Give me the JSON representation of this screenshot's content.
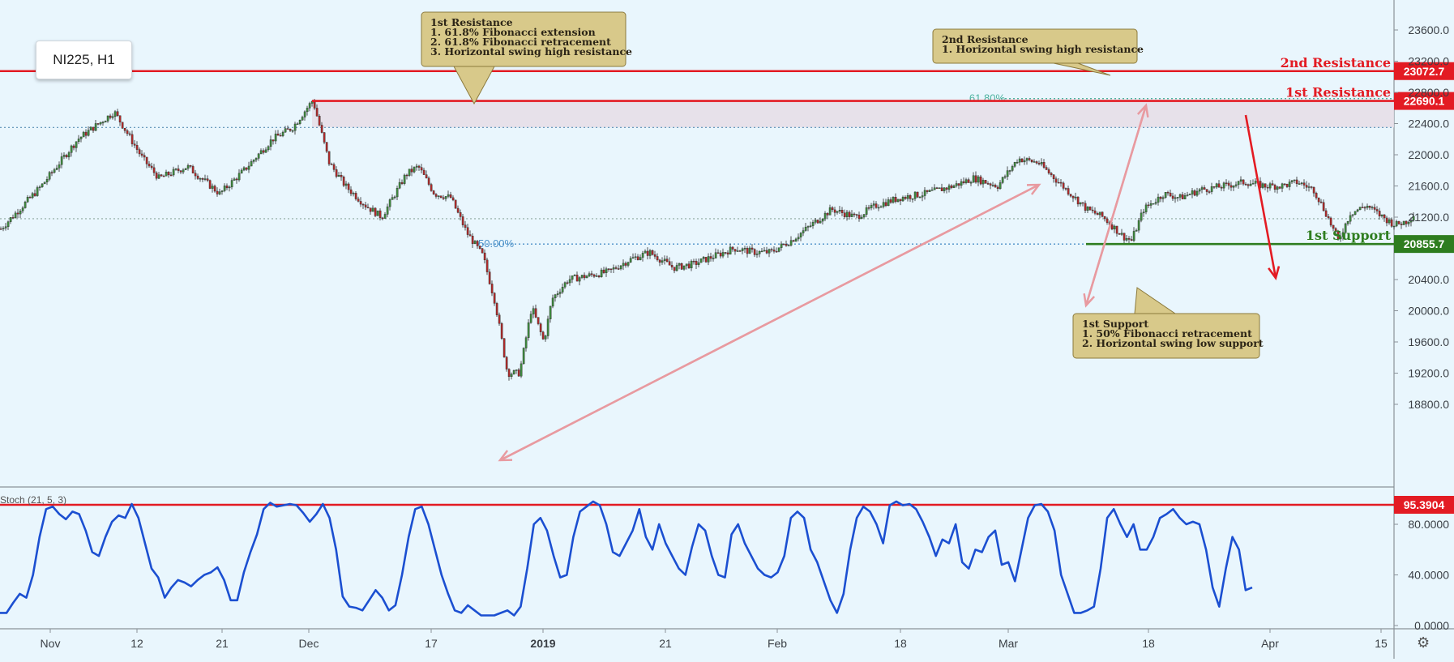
{
  "legend": {
    "symbol_label": "NI225, H1"
  },
  "indicator_label": "Stoch (21, 5, 3)",
  "colors": {
    "background": "#e9f6fd",
    "resistance": "#e31b23",
    "support": "#2e7d1f",
    "up_candle": "#3e8a3e",
    "down_candle": "#b02a2a",
    "stoch_line": "#1b4fd1",
    "arrow_light": "#e89aa0",
    "callout_fill": "#d8c98a",
    "fib_line": "#4a90c8"
  },
  "chart_data": [
    {
      "type": "candlestick",
      "title": "NI225, H1",
      "x_ticks": [
        "Nov",
        "12",
        "21",
        "Dec",
        "17",
        "2019",
        "21",
        "Feb",
        "18",
        "Mar",
        "18",
        "Apr",
        "15"
      ],
      "y_ticks": [
        "23600.0",
        "23200.0",
        "22800.0",
        "22400.0",
        "22000.0",
        "21600.0",
        "21200.0",
        "20400.0",
        "20000.0",
        "19600.0",
        "19200.0",
        "18800.0"
      ],
      "ylim": [
        18550,
        24050
      ],
      "path": [
        [
          0,
          21050
        ],
        [
          50,
          21600
        ],
        [
          95,
          22200
        ],
        [
          140,
          22550
        ],
        [
          175,
          21950
        ],
        [
          195,
          21700
        ],
        [
          230,
          21850
        ],
        [
          270,
          21500
        ],
        [
          300,
          21800
        ],
        [
          335,
          22200
        ],
        [
          360,
          22350
        ],
        [
          385,
          22700
        ],
        [
          405,
          21900
        ],
        [
          425,
          21600
        ],
        [
          450,
          21350
        ],
        [
          470,
          21200
        ],
        [
          500,
          21750
        ],
        [
          515,
          21850
        ],
        [
          535,
          21500
        ],
        [
          555,
          21450
        ],
        [
          575,
          21000
        ],
        [
          595,
          20700
        ],
        [
          610,
          20100
        ],
        [
          625,
          19200
        ],
        [
          640,
          19200
        ],
        [
          655,
          20050
        ],
        [
          670,
          19600
        ],
        [
          680,
          20150
        ],
        [
          700,
          20400
        ],
        [
          725,
          20450
        ],
        [
          750,
          20500
        ],
        [
          775,
          20650
        ],
        [
          800,
          20750
        ],
        [
          830,
          20550
        ],
        [
          855,
          20600
        ],
        [
          880,
          20700
        ],
        [
          905,
          20800
        ],
        [
          930,
          20750
        ],
        [
          950,
          20750
        ],
        [
          975,
          20900
        ],
        [
          1000,
          21100
        ],
        [
          1025,
          21300
        ],
        [
          1055,
          21200
        ],
        [
          1080,
          21350
        ],
        [
          1110,
          21450
        ],
        [
          1140,
          21500
        ],
        [
          1175,
          21600
        ],
        [
          1200,
          21700
        ],
        [
          1230,
          21600
        ],
        [
          1255,
          21950
        ],
        [
          1280,
          21900
        ],
        [
          1300,
          21700
        ],
        [
          1320,
          21500
        ],
        [
          1340,
          21300
        ],
        [
          1360,
          21200
        ],
        [
          1385,
          20950
        ],
        [
          1395,
          20900
        ],
        [
          1410,
          21300
        ],
        [
          1435,
          21500
        ],
        [
          1455,
          21450
        ],
        [
          1480,
          21550
        ],
        [
          1510,
          21600
        ],
        [
          1535,
          21650
        ],
        [
          1560,
          21600
        ],
        [
          1580,
          21600
        ],
        [
          1600,
          21650
        ],
        [
          1620,
          21550
        ],
        [
          1635,
          21250
        ],
        [
          1650,
          20900
        ],
        [
          1665,
          21250
        ],
        [
          1685,
          21350
        ],
        [
          1705,
          21200
        ],
        [
          1720,
          21100
        ],
        [
          1735,
          21150
        ],
        [
          1745,
          21250
        ]
      ],
      "levels": [
        {
          "name": "2nd Resistance",
          "value": 23072.7,
          "label": "23072.7"
        },
        {
          "name": "1st Resistance",
          "value": 22690.1,
          "label": "22690.1"
        },
        {
          "name": "1st Support",
          "value": 20855.7,
          "label": "20855.7"
        }
      ],
      "fibonacci": [
        {
          "label": "61.80%",
          "value": 22720
        },
        {
          "label": "50.00%",
          "value": 20855
        }
      ],
      "dotted_levels": [
        22350,
        21180
      ],
      "resistance_zone": [
        22350,
        22690.1
      ],
      "annotations": [
        {
          "id": "first_resistance_callout",
          "lines": [
            "1st Resistance",
            "1. 61.8% Fibonacci extension",
            "2. 61.8% Fibonacci retracement",
            "3. Horizontal swing high resistance"
          ]
        },
        {
          "id": "second_resistance_callout",
          "lines": [
            "2nd Resistance",
            "1. Horizontal swing high resistance"
          ]
        },
        {
          "id": "first_support_callout",
          "lines": [
            "1st Support",
            "1. 50% Fibonacci retracement",
            "2. Horizontal swing low support"
          ]
        }
      ]
    },
    {
      "type": "line",
      "title": "Stoch (21, 5, 3)",
      "y_ticks": [
        "80.0000",
        "40.0000",
        "0.0000"
      ],
      "ylim": [
        -3,
        101
      ],
      "reference_level": {
        "value": 95.3904,
        "label": "95.3904"
      },
      "series": [
        {
          "values": [
            10,
            10,
            18,
            25,
            22,
            40,
            70,
            92,
            94,
            88,
            84,
            90,
            88,
            75,
            58,
            55,
            70,
            82,
            87,
            85,
            96,
            85,
            65,
            45,
            38,
            22,
            30,
            36,
            34,
            31,
            36,
            40,
            42,
            46,
            36,
            20,
            20,
            42,
            58,
            72,
            92,
            97,
            94,
            95,
            96,
            95,
            89,
            82,
            88,
            96,
            85,
            60,
            23,
            15,
            14,
            12,
            20,
            28,
            22,
            12,
            16,
            40,
            70,
            92,
            94,
            80,
            60,
            40,
            25,
            12,
            10,
            16,
            12,
            8,
            8,
            8,
            10,
            12,
            8,
            15,
            45,
            80,
            85,
            75,
            55,
            38,
            40,
            70,
            90,
            94,
            98,
            95,
            80,
            58,
            55,
            65,
            75,
            92,
            70,
            60,
            80,
            65,
            55,
            45,
            40,
            62,
            80,
            75,
            55,
            40,
            38,
            72,
            80,
            65,
            55,
            45,
            40,
            38,
            42,
            55,
            85,
            90,
            85,
            60,
            50,
            35,
            20,
            10,
            25,
            60,
            85,
            94,
            90,
            80,
            65,
            95,
            98,
            95,
            96,
            92,
            82,
            70,
            55,
            68,
            65,
            80,
            50,
            45,
            60,
            58,
            70,
            75,
            48,
            50,
            35,
            60,
            85,
            95,
            96,
            90,
            75,
            40,
            25,
            10,
            10,
            12,
            15,
            45,
            85,
            92,
            80,
            70,
            80,
            60,
            60,
            70,
            85,
            88,
            92,
            85,
            80,
            82,
            80,
            60,
            30,
            15,
            45,
            70,
            60,
            28,
            30
          ]
        }
      ]
    }
  ]
}
